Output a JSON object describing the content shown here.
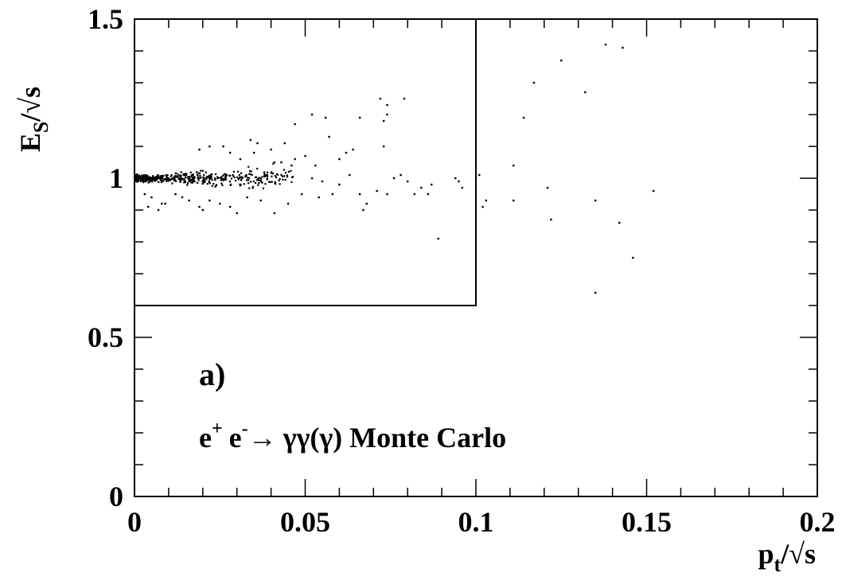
{
  "chart_data": {
    "type": "scatter",
    "title": "",
    "xlabel": {
      "main": "p",
      "sub": "t",
      "suffix": "/√s"
    },
    "ylabel": {
      "main": "E",
      "sub": "S",
      "suffix": "/√s"
    },
    "xlim": [
      0,
      0.2
    ],
    "ylim": [
      0,
      1.5
    ],
    "xticks": [
      0,
      0.05,
      0.1,
      0.15,
      0.2
    ],
    "xtick_labels": [
      "0",
      "0.05",
      "0.1",
      "0.15",
      "0.2"
    ],
    "yticks": [
      0,
      0.5,
      1,
      1.5
    ],
    "ytick_labels": [
      "0",
      "0.5",
      "1",
      "1.5"
    ],
    "grid": false,
    "selection_box": {
      "x": [
        0,
        0.1
      ],
      "y": [
        0.6,
        1.5
      ]
    },
    "annotations": {
      "panel_label": "a)",
      "process": {
        "e1": "e",
        "sup1": "+",
        "e2": "e",
        "sup2": "-",
        "arrow": "→",
        "rest": "γγ(γ) Monte Carlo"
      }
    },
    "series": [
      {
        "name": "",
        "points": [
          [
            0.052,
            1.2
          ],
          [
            0.056,
            1.19
          ],
          [
            0.047,
            1.17
          ],
          [
            0.066,
            1.19
          ],
          [
            0.072,
            1.25
          ],
          [
            0.074,
            1.23
          ],
          [
            0.079,
            1.25
          ],
          [
            0.073,
            1.18
          ],
          [
            0.074,
            1.2
          ],
          [
            0.073,
            1.1
          ],
          [
            0.057,
            1.13
          ],
          [
            0.06,
            1.06
          ],
          [
            0.064,
            1.09
          ],
          [
            0.062,
            1.08
          ],
          [
            0.04,
            1.09
          ],
          [
            0.044,
            1.11
          ],
          [
            0.034,
            1.12
          ],
          [
            0.036,
            1.11
          ],
          [
            0.041,
            1.05
          ],
          [
            0.043,
            1.05
          ],
          [
            0.046,
            1.04
          ],
          [
            0.053,
            1.04
          ],
          [
            0.047,
            1.06
          ],
          [
            0.05,
            1.07
          ],
          [
            0.026,
            1.1
          ],
          [
            0.028,
            1.08
          ],
          [
            0.022,
            1.1
          ],
          [
            0.019,
            1.09
          ],
          [
            0.031,
            1.06
          ],
          [
            0.035,
            1.08
          ],
          [
            0.052,
            1.0
          ],
          [
            0.055,
            0.99
          ],
          [
            0.06,
            0.98
          ],
          [
            0.063,
            1.01
          ],
          [
            0.066,
            0.95
          ],
          [
            0.068,
            0.92
          ],
          [
            0.067,
            0.9
          ],
          [
            0.071,
            0.96
          ],
          [
            0.074,
            0.95
          ],
          [
            0.076,
            1.0
          ],
          [
            0.078,
            1.01
          ],
          [
            0.082,
            0.95
          ],
          [
            0.086,
            0.95
          ],
          [
            0.058,
            0.95
          ],
          [
            0.054,
            0.94
          ],
          [
            0.049,
            0.95
          ],
          [
            0.045,
            0.92
          ],
          [
            0.041,
            0.89
          ],
          [
            0.037,
            0.93
          ],
          [
            0.033,
            0.94
          ],
          [
            0.03,
            0.89
          ],
          [
            0.028,
            0.91
          ],
          [
            0.025,
            0.92
          ],
          [
            0.022,
            0.93
          ],
          [
            0.02,
            0.9
          ],
          [
            0.019,
            0.91
          ],
          [
            0.016,
            0.93
          ],
          [
            0.014,
            0.94
          ],
          [
            0.012,
            0.95
          ],
          [
            0.009,
            0.92
          ],
          [
            0.008,
            0.92
          ],
          [
            0.004,
            0.91
          ],
          [
            0.007,
            0.9
          ],
          [
            0.005,
            0.94
          ],
          [
            0.003,
            0.95
          ],
          [
            0.089,
            0.81
          ],
          [
            0.094,
            1.0
          ],
          [
            0.095,
            0.99
          ],
          [
            0.096,
            0.97
          ],
          [
            0.087,
            0.98
          ],
          [
            0.084,
            0.97
          ],
          [
            0.08,
            0.99
          ],
          [
            0.101,
            1.01
          ],
          [
            0.103,
            0.93
          ],
          [
            0.102,
            0.91
          ],
          [
            0.111,
            1.04
          ],
          [
            0.111,
            0.93
          ],
          [
            0.114,
            1.19
          ],
          [
            0.117,
            1.3
          ],
          [
            0.121,
            0.97
          ],
          [
            0.122,
            0.87
          ],
          [
            0.125,
            1.37
          ],
          [
            0.132,
            1.27
          ],
          [
            0.135,
            0.93
          ],
          [
            0.138,
            1.42
          ],
          [
            0.143,
            1.41
          ],
          [
            0.142,
            0.86
          ],
          [
            0.146,
            0.75
          ],
          [
            0.152,
            0.96
          ],
          [
            0.135,
            0.64
          ]
        ]
      }
    ]
  }
}
